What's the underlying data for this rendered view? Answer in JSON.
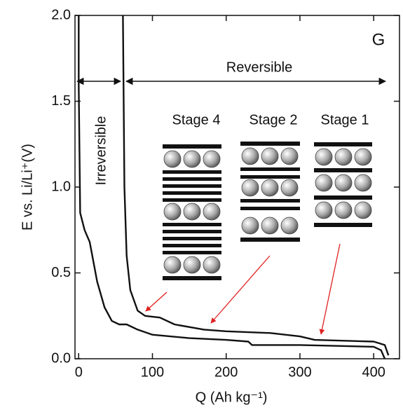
{
  "chart_data": {
    "type": "line",
    "xlabel": "Q (Ah kg⁻¹)",
    "ylabel": "E vs. Li/Li⁺(V)",
    "xlim": [
      -5,
      435
    ],
    "ylim": [
      0,
      2.0
    ],
    "xticks": [
      0,
      100,
      200,
      300,
      400
    ],
    "yticks": [
      {
        "value": 0,
        "label": "0.0"
      },
      {
        "value": 0.5,
        "label": "0.5"
      },
      {
        "value": 1.0,
        "label": "1.0"
      },
      {
        "value": 1.5,
        "label": "1.5"
      },
      {
        "value": 2.0,
        "label": "2.0"
      }
    ],
    "series": [
      {
        "color": "#111111",
        "x": [
          0,
          0,
          2,
          8,
          15,
          25,
          35,
          45,
          55,
          65,
          80,
          100,
          150,
          200,
          230,
          235,
          300,
          400,
          410,
          415
        ],
        "y": [
          2.0,
          1.6,
          0.85,
          0.75,
          0.68,
          0.45,
          0.3,
          0.22,
          0.2,
          0.2,
          0.17,
          0.14,
          0.12,
          0.11,
          0.1,
          0.08,
          0.08,
          0.07,
          0.05,
          0
        ]
      },
      {
        "color": "#111111",
        "x": [
          60,
          62,
          65,
          70,
          80,
          90,
          110,
          130,
          170,
          200,
          260,
          300,
          320,
          400,
          415,
          420
        ],
        "y": [
          2.0,
          1.0,
          0.6,
          0.4,
          0.28,
          0.25,
          0.24,
          0.2,
          0.17,
          0.16,
          0.15,
          0.13,
          0.11,
          0.1,
          0.08,
          0.02
        ]
      }
    ],
    "annotations": {
      "panel": "G",
      "reversible": "Reversible",
      "irreversible": "Irreversible",
      "stage4": "Stage 4",
      "stage2": "Stage 2",
      "stage1": "Stage 1"
    }
  }
}
